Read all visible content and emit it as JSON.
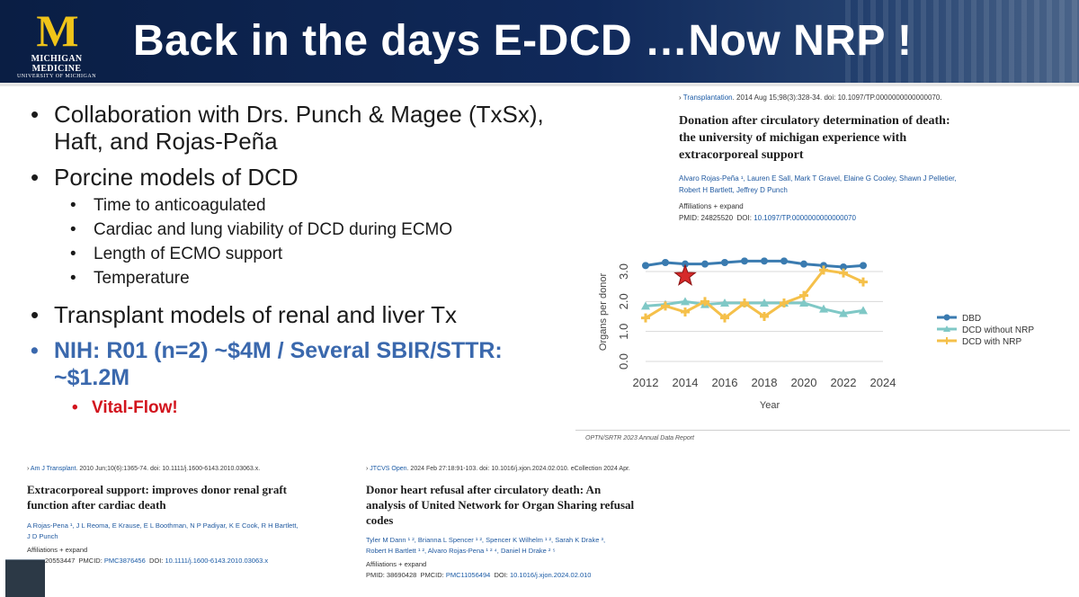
{
  "header": {
    "logo_letter": "M",
    "logo_line1": "MICHIGAN MEDICINE",
    "logo_line2": "UNIVERSITY OF MICHIGAN",
    "title": "Back in the days E-DCD …Now NRP !"
  },
  "bullets": [
    "Collaboration with Drs. Punch & Magee (TxSx),",
    "Haft, and Rojas-Peña",
    "Porcine models of DCD",
    "Transplant models of renal and liver Tx",
    "NIH:  R01 (n=2) ~$4M  / Several SBIR/STTR:",
    "~$1.2M"
  ],
  "sub_bullets": [
    "Time to anticoagulated",
    "Cardiac and lung viability of DCD during ECMO",
    "Length of ECMO support",
    "Temperature"
  ],
  "highlight": "Vital-Flow!",
  "paper1": {
    "arrow": "›",
    "journal": "Transplantation",
    "citation": ". 2014 Aug 15;98(3):328-34. doi: 10.1097/TP.0000000000000070.",
    "title_lines": [
      "Donation after circulatory determination of death:",
      "the university of michigan experience with",
      "extracorporeal support"
    ],
    "authors_line1": "Alvaro Rojas-Peña ¹, Lauren E Sall, Mark T Gravel, Elaine G Cooley, Shawn J Pelletier,",
    "authors_line2": "Robert H Bartlett, Jeffrey D Punch",
    "affiliations": "Affiliations  + expand",
    "pmid_label": "PMID: 24825520",
    "doi_label": "DOI:",
    "doi": "10.1097/TP.0000000000000070"
  },
  "paper2": {
    "arrow": "›",
    "journal": "Am J Transplant",
    "citation": ". 2010 Jun;10(6):1365-74. doi: 10.1111/j.1600-6143.2010.03063.x.",
    "title_lines": [
      "Extracorporeal support: improves donor renal graft",
      "function after cardiac death"
    ],
    "authors_line1": "A Rojas-Pena ¹, J L Reoma, E Krause, E L Boothman, N P Padiyar, K E Cook, R H Bartlett,",
    "authors_line2": "J D Punch",
    "affiliations": "Affiliations  + expand",
    "pmid_label": "20553447",
    "pmcid_label": "PMCID:",
    "pmcid": "PMC3876456",
    "doi_label": "DOI:",
    "doi": "10.1111/j.1600-6143.2010.03063.x"
  },
  "paper3": {
    "arrow": "›",
    "journal": "JTCVS Open",
    "citation": ". 2024 Feb 27:18:91-103. doi: 10.1016/j.xjon.2024.02.010. eCollection 2024 Apr.",
    "title_lines": [
      "Donor heart refusal after circulatory death: An",
      "analysis of United Network for Organ Sharing refusal",
      "codes"
    ],
    "authors_line1": "Tyler M Dann ¹ ², Brianna L Spencer ¹ ², Spencer K Wilhelm ¹ ², Sarah K Drake ³,",
    "authors_line2": "Robert H Bartlett ¹ ², Alvaro Rojas-Pena ¹ ² ⁴, Daniel H Drake ² ⁵",
    "affiliations": "Affiliations  + expand",
    "pmid_label": "PMID: 38690428",
    "pmcid_label": "PMCID:",
    "pmcid": "PMC11056494",
    "doi_label": "DOI:",
    "doi": "10.1016/j.xjon.2024.02.010"
  },
  "credit": "OPTN/SRTR 2023 Annual Data Report",
  "colors": {
    "dbd": "#3a7bb0",
    "dcd_without_nrp": "#7fc8c6",
    "dcd_with_nrp": "#f5c04a",
    "star": "#d62a2a",
    "nih": "#3a68ad",
    "highlight": "#d2141d"
  },
  "chart_data": {
    "type": "line",
    "x": [
      2012,
      2013,
      2014,
      2015,
      2016,
      2017,
      2018,
      2019,
      2020,
      2021,
      2022,
      2023
    ],
    "series": [
      {
        "name": "DBD",
        "values": [
          3.2,
          3.3,
          3.25,
          3.25,
          3.3,
          3.35,
          3.35,
          3.35,
          3.25,
          3.2,
          3.15,
          3.2
        ]
      },
      {
        "name": "DCD without NRP",
        "values": [
          1.85,
          1.9,
          2.0,
          1.9,
          1.95,
          1.95,
          1.95,
          1.95,
          1.95,
          1.75,
          1.6,
          1.7
        ]
      },
      {
        "name": "DCD with NRP",
        "values": [
          1.45,
          1.85,
          1.65,
          2.0,
          1.45,
          1.95,
          1.5,
          1.95,
          2.2,
          3.05,
          2.95,
          2.65
        ]
      }
    ],
    "annotation": {
      "marker": "star",
      "x": 2014,
      "y": 2.85
    },
    "xlabel": "Year",
    "ylabel": "Organs per donor",
    "xlim": [
      2012,
      2024
    ],
    "ylim": [
      0,
      3.3
    ],
    "xticks": [
      "2012",
      "2014",
      "2016",
      "2018",
      "2020",
      "2022",
      "2024"
    ],
    "yticks": [
      "0.0",
      "1.0",
      "2.0",
      "3.0"
    ],
    "grid": "horizontal",
    "legend_position": "right"
  }
}
